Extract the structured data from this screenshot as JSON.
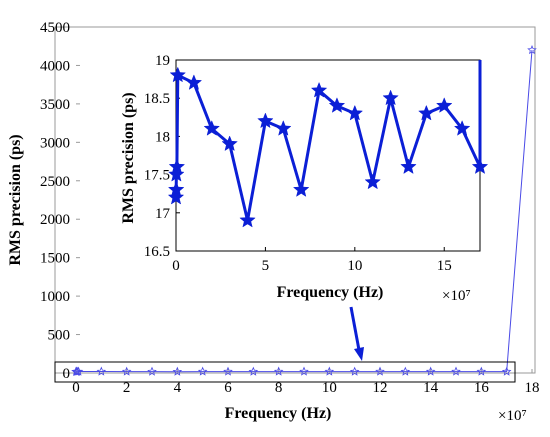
{
  "chart_data": [
    {
      "type": "line",
      "panel": "main",
      "xlabel": "Frequency (Hz)",
      "ylabel": "RMS precision (ps)",
      "x_multiplier": "×10⁷",
      "xlim": [
        0,
        18
      ],
      "ylim": [
        0,
        4500
      ],
      "xticks": [
        "0",
        "2",
        "4",
        "6",
        "8",
        "10",
        "12",
        "14",
        "16",
        "18"
      ],
      "yticks": [
        "0",
        "500",
        "1000",
        "1500",
        "2000",
        "2500",
        "3000",
        "3500",
        "4000",
        "4500"
      ],
      "grid": false,
      "series": [
        {
          "marker": "star",
          "color": "#4a4ae6",
          "x": [
            0,
            0.01,
            0.02,
            0.05,
            0.1,
            1,
            2,
            3,
            4,
            5,
            6,
            7,
            8,
            9,
            10,
            11,
            12,
            13,
            14,
            15,
            16,
            17,
            18
          ],
          "y": [
            17.2,
            17.3,
            17.5,
            17.6,
            18.8,
            18.7,
            18.1,
            17.9,
            16.9,
            18.2,
            18.1,
            17.3,
            18.6,
            18.4,
            18.3,
            17.4,
            18.5,
            17.6,
            18.3,
            18.4,
            18.1,
            17.6,
            4200
          ]
        }
      ]
    },
    {
      "type": "line",
      "panel": "inset",
      "xlabel": "Frequency (Hz)",
      "ylabel": "RMS precision (ps)",
      "x_multiplier": "×10⁷",
      "xlim": [
        0,
        17
      ],
      "ylim": [
        16.5,
        19
      ],
      "xticks": [
        "0",
        "5",
        "10",
        "15"
      ],
      "yticks": [
        "16.5",
        "17",
        "17.5",
        "18",
        "18.5",
        "19"
      ],
      "grid": false,
      "series": [
        {
          "marker": "star",
          "color": "#0b1fd6",
          "x": [
            0,
            0.01,
            0.02,
            0.05,
            0.1,
            1,
            2,
            3,
            4,
            5,
            6,
            7,
            8,
            9,
            10,
            11,
            12,
            13,
            14,
            15,
            16,
            17,
            17
          ],
          "y": [
            17.2,
            17.3,
            17.5,
            17.6,
            18.8,
            18.7,
            18.1,
            17.9,
            16.9,
            18.2,
            18.1,
            17.3,
            18.6,
            18.4,
            18.3,
            17.4,
            18.5,
            17.6,
            18.3,
            18.4,
            18.1,
            17.6,
            19
          ]
        }
      ]
    }
  ]
}
